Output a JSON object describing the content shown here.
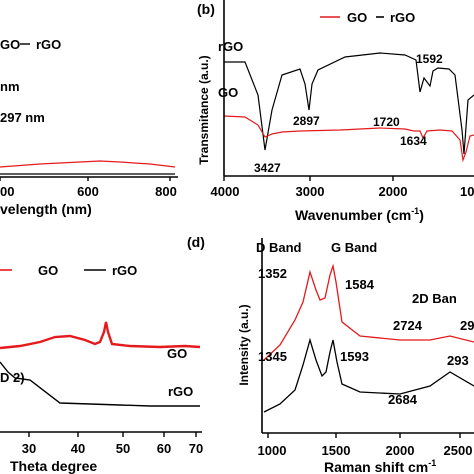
{
  "panel_a": {
    "legend": [
      "GO",
      "rGO"
    ],
    "annotations": [
      "nm",
      "297 nm"
    ],
    "xlabel": "velength (nm)",
    "xticks": [
      "00",
      "600",
      "800"
    ],
    "colors": {
      "GO": "#e41a1c",
      "rGO": "#000000"
    }
  },
  "panel_b": {
    "tag": "(b)",
    "legend": [
      "GO",
      "rGO"
    ],
    "xlabel": "Wavenumber (cm",
    "xlabel_sup": "-1",
    "xlabel_end": ")",
    "ylabel": "Transmitance (a.u.)",
    "xticks": [
      "4000",
      "3000",
      "2000",
      "10"
    ],
    "curve_labels": [
      "rGO",
      "GO"
    ],
    "peaks": [
      "3427",
      "2897",
      "1720",
      "1592",
      "1634"
    ]
  },
  "panel_c": {
    "legend": [
      "GO",
      "rGO"
    ],
    "xlabel": "Theta degree",
    "xticks": [
      "30",
      "40",
      "50",
      "60",
      "70"
    ],
    "curve_labels": [
      "GO",
      "rGO"
    ],
    "annotation": "D 2)"
  },
  "panel_d": {
    "tag": "(d)",
    "xlabel": "Raman shift cm",
    "xlabel_sup": "-1",
    "ylabel": "Intensity (a.u.)",
    "xticks": [
      "1000",
      "1500",
      "2000",
      "2500"
    ],
    "band_labels": [
      "D Band",
      "G Band",
      "2D Ban"
    ],
    "peaks": [
      "1352",
      "1584",
      "2724",
      "29",
      "1345",
      "1593",
      "293",
      "2684"
    ]
  },
  "chart_data": [
    {
      "type": "line",
      "panel": "a",
      "xlabel": "velength (nm)",
      "xlim": [
        400,
        800
      ],
      "series": [
        {
          "name": "GO",
          "x": [
            400,
            500,
            600,
            700,
            800
          ],
          "y": [
            0.055,
            0.075,
            0.082,
            0.075,
            0.055
          ]
        },
        {
          "name": "rGO",
          "x": [
            400,
            500,
            600,
            700,
            800
          ],
          "y": [
            0.0,
            0.0,
            0.0,
            0.0,
            0.0
          ]
        }
      ]
    },
    {
      "type": "line",
      "panel": "b",
      "xlabel": "Wavenumber (cm-1)",
      "ylabel": "Transmitance (a.u.)",
      "xlim": [
        4000,
        950
      ],
      "ylim": [
        0,
        100
      ],
      "series": [
        {
          "name": "GO",
          "x": [
            4000,
            3800,
            3600,
            3427,
            3200,
            3000,
            2800,
            2400,
            2000,
            1800,
            1720,
            1660,
            1634,
            1600,
            1450,
            1300,
            1200,
            1100,
            1060,
            1000
          ],
          "y": [
            68,
            67,
            55,
            35,
            48,
            52,
            54,
            56,
            57,
            58,
            56,
            56,
            43,
            54,
            57,
            58,
            56,
            50,
            25,
            60
          ]
        },
        {
          "name": "rGO",
          "x": [
            4000,
            3800,
            3600,
            3427,
            3300,
            3150,
            3000,
            2950,
            2897,
            2850,
            2600,
            2400,
            2200,
            2000,
            1800,
            1720,
            1660,
            1600,
            1592,
            1560,
            1400,
            1250,
            1200,
            1100,
            1060,
            1000
          ],
          "y": [
            80,
            79,
            55,
            13,
            45,
            78,
            82,
            66,
            70,
            82,
            86,
            90,
            88,
            87,
            84,
            70,
            75,
            72,
            80,
            82,
            85,
            85,
            80,
            45,
            28,
            65
          ]
        }
      ]
    },
    {
      "type": "line",
      "panel": "c",
      "xlabel": "Theta degree",
      "xlim": [
        19,
        68
      ],
      "ylim": [
        0,
        100
      ],
      "series": [
        {
          "name": "GO",
          "x": [
            19,
            25,
            30,
            35,
            40,
            44,
            46,
            48,
            52,
            58,
            64,
            66
          ],
          "y": [
            45,
            48,
            53,
            58,
            55,
            48,
            72,
            48,
            45,
            43,
            45,
            44
          ]
        },
        {
          "name": "rGO",
          "x": [
            19,
            23,
            27,
            32,
            38,
            44,
            50,
            56,
            62,
            66
          ],
          "y": [
            22,
            8,
            6,
            5,
            4,
            4,
            3,
            3,
            3,
            3
          ]
        }
      ]
    },
    {
      "type": "line",
      "panel": "d",
      "xlabel": "Raman shift cm-1",
      "ylabel": "Intensity (a.u.)",
      "xlim": [
        1000,
        2700
      ],
      "ylim": [
        0,
        100
      ],
      "series": [
        {
          "name": "GO",
          "x": [
            1000,
            1150,
            1250,
            1352,
            1420,
            1584,
            1650,
            1800,
            2000,
            2300,
            2500,
            2700
          ],
          "y": [
            47,
            50,
            56,
            90,
            70,
            92,
            52,
            47,
            46,
            48,
            50,
            49
          ]
        },
        {
          "name": "rGO",
          "x": [
            1000,
            1150,
            1250,
            1345,
            1420,
            1593,
            1660,
            1800,
            2100,
            2350,
            2500,
            2700
          ],
          "y": [
            13,
            16,
            24,
            62,
            34,
            68,
            28,
            22,
            18,
            22,
            30,
            24
          ]
        }
      ]
    }
  ]
}
